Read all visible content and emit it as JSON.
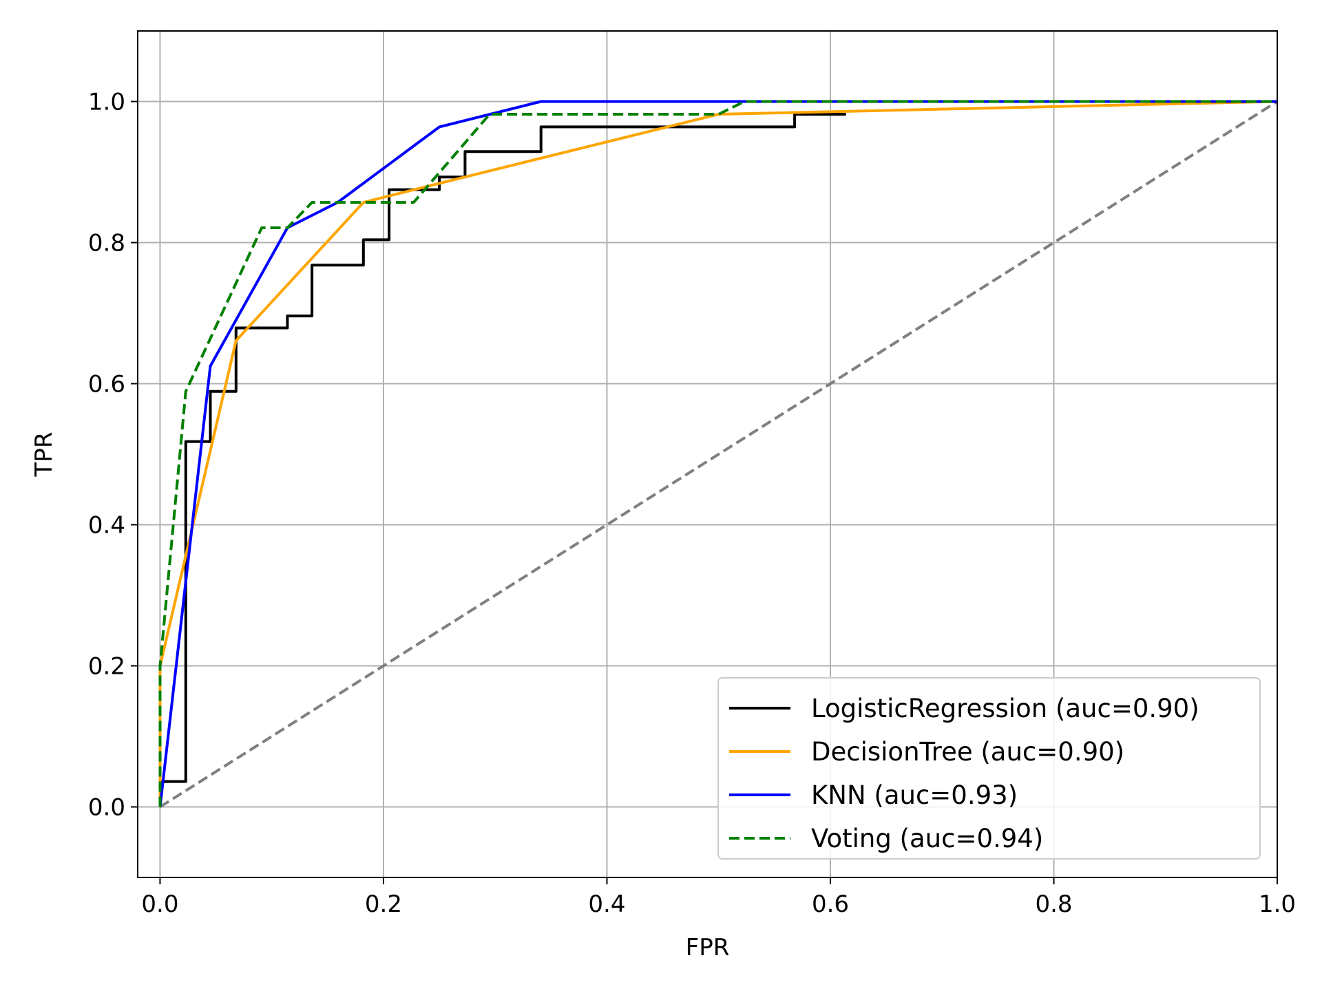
{
  "chart_data": {
    "type": "line",
    "title": "",
    "xlabel": "FPR",
    "ylabel": "TPR",
    "xlim": [
      -0.02,
      1.0
    ],
    "ylim": [
      -0.1,
      1.1
    ],
    "xticks": [
      0.0,
      0.2,
      0.4,
      0.6,
      0.8,
      1.0
    ],
    "yticks": [
      0.0,
      0.2,
      0.4,
      0.6,
      0.8,
      1.0
    ],
    "xtick_labels": [
      "0.0",
      "0.2",
      "0.4",
      "0.6",
      "0.8",
      "1.0"
    ],
    "ytick_labels": [
      "0.0",
      "0.2",
      "0.4",
      "0.6",
      "0.8",
      "1.0"
    ],
    "grid": true,
    "legend_position": "lower-right",
    "series": [
      {
        "name": "LogisticRegression (auc=0.90)",
        "color": "#000000",
        "dash": "solid",
        "x": [
          0,
          0,
          0.023,
          0.023,
          0.045,
          0.045,
          0.068,
          0.068,
          0.114,
          0.114,
          0.136,
          0.136,
          0.182,
          0.182,
          0.205,
          0.205,
          0.25,
          0.25,
          0.273,
          0.273,
          0.341,
          0.341,
          0.568,
          0.568,
          0.614
        ],
        "y": [
          0,
          0.036,
          0.036,
          0.518,
          0.518,
          0.589,
          0.589,
          0.679,
          0.679,
          0.696,
          0.696,
          0.768,
          0.768,
          0.804,
          0.804,
          0.875,
          0.875,
          0.893,
          0.893,
          0.929,
          0.929,
          0.964,
          0.964,
          0.982,
          0.982
        ]
      },
      {
        "name": "DecisionTree (auc=0.90)",
        "color": "#ffa500",
        "dash": "solid",
        "x": [
          0,
          0,
          0.068,
          0.182,
          0.25,
          0.5,
          1.0
        ],
        "y": [
          0,
          0.2,
          0.661,
          0.857,
          0.884,
          0.982,
          1.0
        ]
      },
      {
        "name": "KNN (auc=0.93)",
        "color": "#0000ff",
        "dash": "solid",
        "x": [
          0,
          0.045,
          0.114,
          0.159,
          0.25,
          0.341,
          1.0
        ],
        "y": [
          0,
          0.625,
          0.821,
          0.857,
          0.964,
          1.0,
          1.0
        ]
      },
      {
        "name": "Voting (auc=0.94)",
        "color": "#008000",
        "dash": "dashed",
        "x": [
          0,
          0,
          0.023,
          0.091,
          0.114,
          0.136,
          0.227,
          0.295,
          0.5,
          0.523,
          1.0
        ],
        "y": [
          0,
          0.2,
          0.589,
          0.821,
          0.821,
          0.857,
          0.857,
          0.982,
          0.982,
          1.0,
          1.0
        ]
      }
    ],
    "reference_line": {
      "color": "#808080",
      "dash": "dashed",
      "x": [
        0,
        1
      ],
      "y": [
        0,
        1
      ]
    }
  }
}
